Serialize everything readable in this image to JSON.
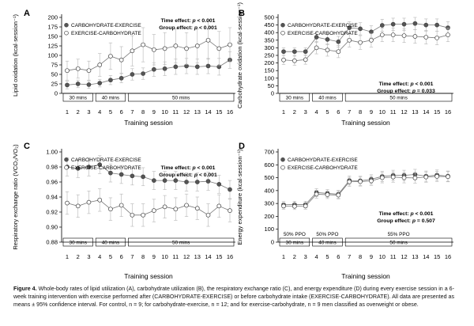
{
  "chart_data": [
    {
      "panel": "A",
      "type": "line",
      "ylabel": "Lipid oxidation (kcal·session⁻¹)",
      "xlabel": "Training session",
      "x": [
        1,
        2,
        3,
        4,
        5,
        6,
        7,
        8,
        9,
        10,
        11,
        12,
        13,
        14,
        15,
        16
      ],
      "ylim": [
        0,
        200
      ],
      "yticks": [
        0,
        25,
        50,
        75,
        100,
        125,
        150,
        175,
        200
      ],
      "series": [
        {
          "name": "CARBOHYDRATE-EXERCISE",
          "marker": "filled",
          "values": [
            22,
            25,
            23,
            27,
            35,
            40,
            50,
            52,
            63,
            65,
            70,
            72,
            70,
            72,
            70,
            88
          ],
          "err": [
            10,
            10,
            10,
            10,
            12,
            12,
            15,
            15,
            18,
            18,
            20,
            20,
            20,
            20,
            22,
            22
          ]
        },
        {
          "name": "EXERCISE-CARBOHYDRATE",
          "marker": "open",
          "values": [
            60,
            65,
            60,
            75,
            98,
            88,
            112,
            128,
            115,
            118,
            125,
            118,
            125,
            140,
            118,
            128
          ],
          "err": [
            25,
            25,
            25,
            30,
            35,
            35,
            40,
            45,
            40,
            42,
            45,
            42,
            45,
            50,
            45,
            45
          ]
        }
      ],
      "annotations": [
        "Time effect: p < 0.001",
        "Group effect: p < 0.001"
      ],
      "legend_position": "top-left",
      "blocks": [
        {
          "label": "30 mins",
          "from": 1,
          "to": 3
        },
        {
          "label": "40 mins",
          "from": 4,
          "to": 6
        },
        {
          "label": "50 mins",
          "from": 7,
          "to": 16
        }
      ]
    },
    {
      "panel": "B",
      "type": "line",
      "ylabel": "Carbohydrate oxidation (kcal·session⁻¹)",
      "xlabel": "Training session",
      "x": [
        1,
        2,
        3,
        4,
        5,
        6,
        7,
        8,
        9,
        10,
        11,
        12,
        13,
        14,
        15,
        16
      ],
      "ylim": [
        0,
        500
      ],
      "yticks": [
        0,
        50,
        100,
        150,
        200,
        250,
        300,
        350,
        400,
        450,
        500
      ],
      "series": [
        {
          "name": "CARBOHYDRATE-EXERCISE",
          "marker": "filled",
          "values": [
            275,
            275,
            275,
            370,
            355,
            340,
            432,
            425,
            405,
            448,
            455,
            455,
            460,
            450,
            450,
            432
          ],
          "err": [
            25,
            25,
            25,
            35,
            35,
            35,
            40,
            40,
            40,
            40,
            40,
            40,
            40,
            40,
            40,
            40
          ]
        },
        {
          "name": "EXERCISE-CARBOHYDRATE",
          "marker": "open",
          "values": [
            220,
            215,
            222,
            300,
            285,
            275,
            350,
            335,
            350,
            385,
            385,
            380,
            375,
            370,
            365,
            385
          ],
          "err": [
            30,
            30,
            30,
            40,
            40,
            40,
            45,
            45,
            45,
            45,
            45,
            45,
            45,
            45,
            45,
            45
          ]
        }
      ],
      "annotations": [
        "Time effect: p < 0.001",
        "Group effect: p = 0.033"
      ],
      "legend_position": "top-left",
      "blocks": [
        {
          "label": "30 mins",
          "from": 1,
          "to": 3
        },
        {
          "label": "40 mins",
          "from": 4,
          "to": 6
        },
        {
          "label": "50 mins",
          "from": 7,
          "to": 16
        }
      ]
    },
    {
      "panel": "C",
      "type": "line",
      "ylabel": "Respiratory exchange ratio (VCO₂/VO₂)",
      "xlabel": "Training session",
      "x": [
        1,
        2,
        3,
        4,
        5,
        6,
        7,
        8,
        9,
        10,
        11,
        12,
        13,
        14,
        15,
        16
      ],
      "ylim": [
        0.88,
        1.0
      ],
      "yticks": [
        "0.88",
        "0.90",
        "0.92",
        "0.94",
        "0.96",
        "0.98",
        "1.00"
      ],
      "series": [
        {
          "name": "CARBOHYDRATE-EXERCISE",
          "marker": "filled",
          "values": [
            0.98,
            0.978,
            0.98,
            0.983,
            0.972,
            0.97,
            0.968,
            0.967,
            0.962,
            0.962,
            0.962,
            0.96,
            0.96,
            0.961,
            0.957,
            0.95
          ],
          "err": [
            0.012,
            0.012,
            0.012,
            0.012,
            0.012,
            0.012,
            0.012,
            0.012,
            0.012,
            0.012,
            0.012,
            0.012,
            0.012,
            0.012,
            0.012,
            0.012
          ]
        },
        {
          "name": "EXERCISE-CARBOHYDRATE",
          "marker": "open",
          "values": [
            0.932,
            0.928,
            0.933,
            0.936,
            0.924,
            0.929,
            0.916,
            0.916,
            0.922,
            0.927,
            0.924,
            0.929,
            0.925,
            0.916,
            0.928,
            0.922
          ],
          "err": [
            0.015,
            0.015,
            0.015,
            0.015,
            0.015,
            0.015,
            0.015,
            0.015,
            0.015,
            0.015,
            0.015,
            0.015,
            0.015,
            0.015,
            0.015,
            0.015
          ]
        }
      ],
      "annotations": [
        "Time effect: p < 0.001",
        "Group effect: p < 0.001"
      ],
      "legend_position": "top-left",
      "blocks": [
        {
          "label": "30 mins",
          "from": 1,
          "to": 3
        },
        {
          "label": "40 mins",
          "from": 4,
          "to": 6
        },
        {
          "label": "50 mins",
          "from": 7,
          "to": 16
        }
      ]
    },
    {
      "panel": "D",
      "type": "line",
      "ylabel": "Energy expenditure (kcal·session⁻¹)",
      "xlabel": "Training session",
      "x": [
        1,
        2,
        3,
        4,
        5,
        6,
        7,
        8,
        9,
        10,
        11,
        12,
        13,
        14,
        15,
        16
      ],
      "ylim": [
        0,
        700
      ],
      "yticks": [
        0,
        100,
        200,
        300,
        400,
        500,
        600,
        700
      ],
      "series": [
        {
          "name": "CARBOHYDRATE-EXERCISE",
          "marker": "filled",
          "values": [
            290,
            292,
            292,
            385,
            378,
            372,
            478,
            476,
            488,
            510,
            518,
            518,
            525,
            512,
            520,
            512
          ],
          "err": [
            25,
            25,
            25,
            30,
            30,
            30,
            35,
            35,
            35,
            40,
            40,
            40,
            40,
            40,
            40,
            40
          ]
        },
        {
          "name": "EXERCISE-CARBOHYDRATE",
          "marker": "open",
          "values": [
            280,
            278,
            280,
            372,
            368,
            365,
            468,
            470,
            475,
            500,
            505,
            500,
            498,
            505,
            510,
            508
          ],
          "err": [
            25,
            25,
            25,
            30,
            30,
            30,
            35,
            35,
            35,
            40,
            40,
            40,
            40,
            40,
            40,
            40
          ]
        }
      ],
      "annotations": [
        "Time effect: p < 0.001",
        "Group effect: p = 0.507"
      ],
      "legend_position": "top-left",
      "blocks": [
        {
          "label": "30 mins",
          "from": 1,
          "to": 3,
          "top_label": "50% PPO"
        },
        {
          "label": "40 mins",
          "from": 4,
          "to": 6,
          "top_label": "50% PPO"
        },
        {
          "label": "50 mins",
          "from": 7,
          "to": 16,
          "top_label": "55% PPO"
        }
      ]
    }
  ],
  "caption": {
    "label": "Figure 4.",
    "text": "Whole-body rates of lipid utilization (A), carbohydrate utilization (B), the respiratory exchange ratio (C), and energy expenditure (D) during every exercise session in a 6-week training intervention with exercise performed after (CARBOHYDRATE-EXERCISE) or before carbohydrate intake (EXERCISE-CARBOHYDRATE). All data are presented as means ± 95% confidence interval. For control, n = 9; for carbohydrate-exercise, n = 12; and for exercise-carbohydrate, n = 9 men classified as overweight or obese."
  },
  "colors": {
    "filled_marker": "#555555",
    "open_marker": "#ffffff",
    "line": "#7a7a7a",
    "errorbar": "#b5b5b5",
    "axis": "#000000"
  }
}
